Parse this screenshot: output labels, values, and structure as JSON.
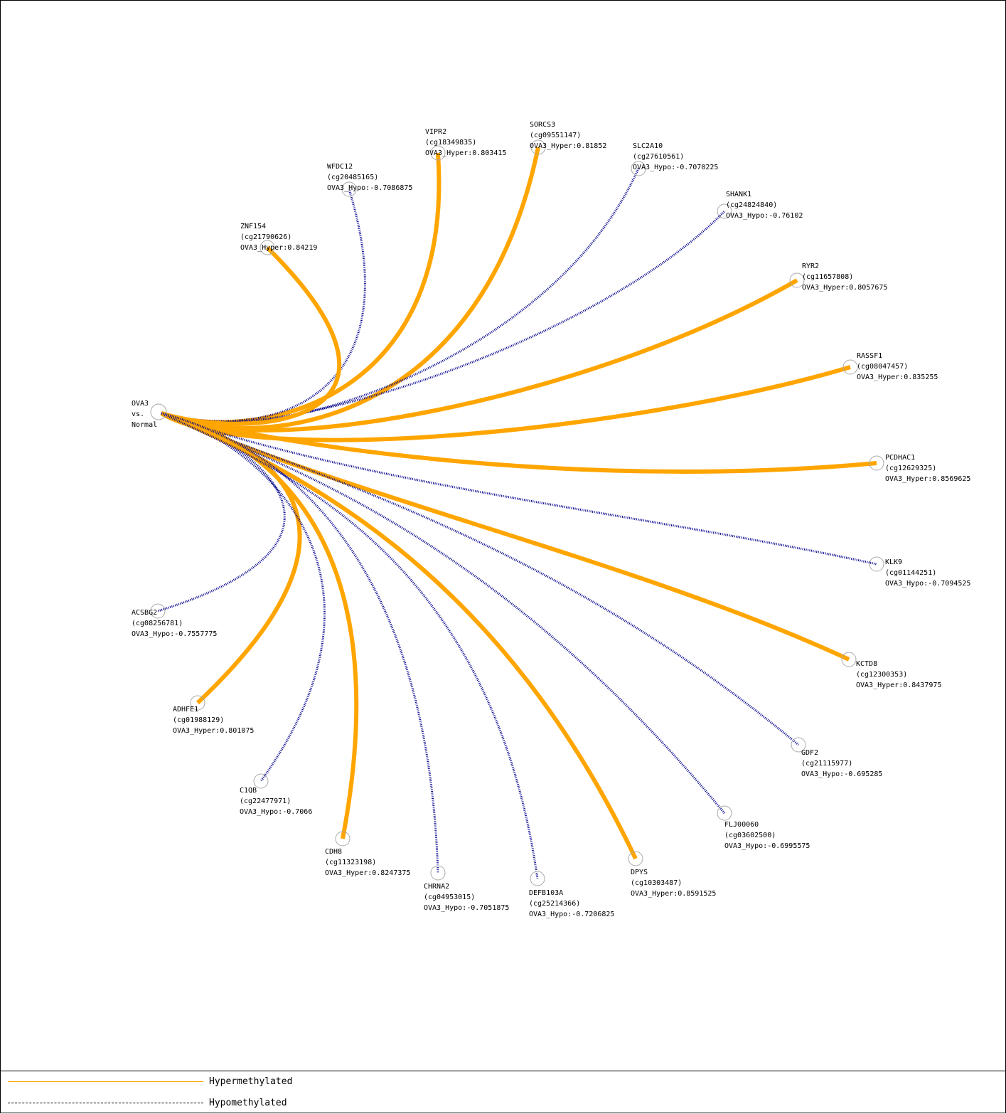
{
  "center": {
    "lines": [
      "OVA3",
      "vs.",
      "Normal"
    ]
  },
  "nodes": [
    {
      "gene": "VIPR2",
      "probe": "(cg18349835)",
      "score": "OVA3_Hyper:0.803415",
      "type": "hyper"
    },
    {
      "gene": "SORCS3",
      "probe": "(cg09551147)",
      "score": "OVA3_Hyper:0.81852",
      "type": "hyper"
    },
    {
      "gene": "SLC2A10",
      "probe": "(cg27610561)",
      "score": "OVA3_Hypo:-0.7070225",
      "type": "hypo"
    },
    {
      "gene": "WFDC12",
      "probe": "(cg20485165)",
      "score": "OVA3_Hypo:-0.7086875",
      "type": "hypo"
    },
    {
      "gene": "SHANK1",
      "probe": "(cg24824840)",
      "score": "OVA3_Hypo:-0.76102",
      "type": "hypo"
    },
    {
      "gene": "ZNF154",
      "probe": "(cg21790626)",
      "score": "OVA3_Hyper:0.84219",
      "type": "hyper"
    },
    {
      "gene": "RYR2",
      "probe": "(cg11657808)",
      "score": "OVA3_Hyper:0.8057675",
      "type": "hyper"
    },
    {
      "gene": "RASSF1",
      "probe": "(cg08047457)",
      "score": "OVA3_Hyper:0.835255",
      "type": "hyper"
    },
    {
      "gene": "PCDHAC1",
      "probe": "(cg12629325)",
      "score": "OVA3_Hyper:0.8569625",
      "type": "hyper"
    },
    {
      "gene": "KLK9",
      "probe": "(cg01144251)",
      "score": "OVA3_Hypo:-0.7094525",
      "type": "hypo"
    },
    {
      "gene": "ACSBG2",
      "probe": "(cg08256781)",
      "score": "OVA3_Hypo:-0.7557775",
      "type": "hypo"
    },
    {
      "gene": "KCTD8",
      "probe": "(cg12300353)",
      "score": "OVA3_Hyper:0.8437975",
      "type": "hyper"
    },
    {
      "gene": "ADHFE1",
      "probe": "(cg01988129)",
      "score": "OVA3_Hyper:0.801075",
      "type": "hyper"
    },
    {
      "gene": "GDF2",
      "probe": "(cg21115977)",
      "score": "OVA3_Hypo:-0.695285",
      "type": "hypo"
    },
    {
      "gene": "C1QB",
      "probe": "(cg22477971)",
      "score": "OVA3_Hypo:-0.7066",
      "type": "hypo"
    },
    {
      "gene": "FLJ00060",
      "probe": "(cg03602500)",
      "score": "OVA3_Hypo:-0.6995575",
      "type": "hypo"
    },
    {
      "gene": "CDH8",
      "probe": "(cg11323198)",
      "score": "OVA3_Hyper:0.8247375",
      "type": "hyper"
    },
    {
      "gene": "DPYS",
      "probe": "(cg10303487)",
      "score": "OVA3_Hyper:0.8591525",
      "type": "hyper"
    },
    {
      "gene": "CHRNA2",
      "probe": "(cg04953015)",
      "score": "OVA3_Hypo:-0.7051875",
      "type": "hypo"
    },
    {
      "gene": "DEFB103A",
      "probe": "(cg25214366)",
      "score": "OVA3_Hypo:-0.7206825",
      "type": "hypo"
    }
  ],
  "legend": {
    "hyper_label": "Hypermethylated",
    "hypo_label": "Hypomethylated"
  },
  "colors": {
    "hyper": "#FFA500",
    "hypo": "#00008B",
    "node_ring": "#A9A9A9"
  }
}
